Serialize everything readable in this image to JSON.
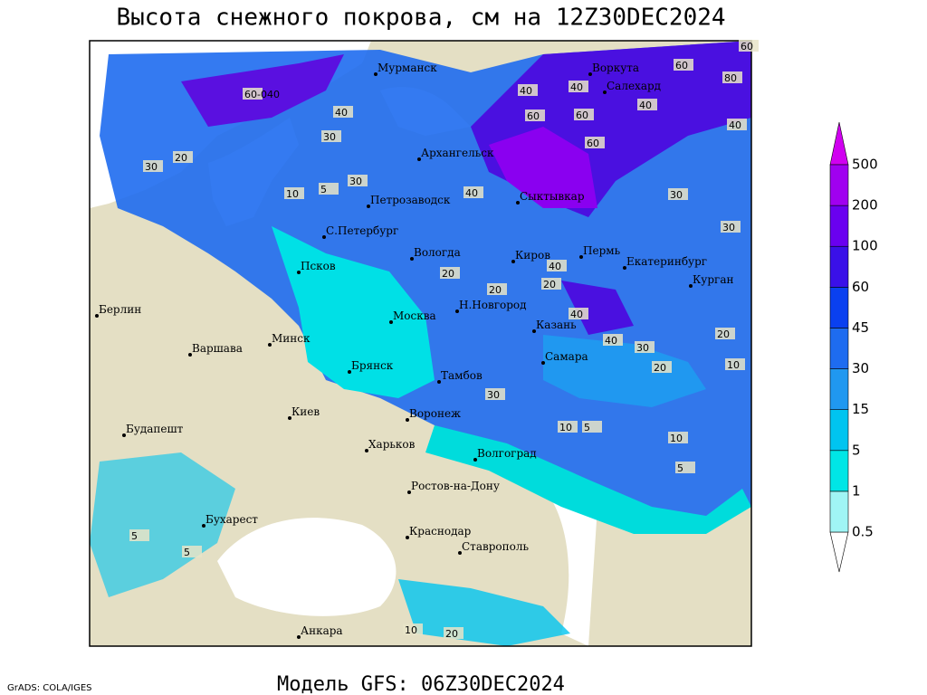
{
  "header": {
    "title": "Высота снежного покрова, см на 12Z30DEC2024"
  },
  "footer": {
    "credit": "GrADS: COLA/IGES",
    "model": "Модель GFS: 06Z30DEC2024"
  },
  "legend": {
    "levels": [
      0.5,
      1,
      5,
      15,
      30,
      45,
      60,
      100,
      200,
      500
    ],
    "colors": [
      "#ffffff",
      "#a0f5f5",
      "#00e6e6",
      "#00c4f0",
      "#2098f0",
      "#1e6cf0",
      "#0a40f0",
      "#3a10e8",
      "#6a00f0",
      "#a000f0",
      "#d000f0"
    ]
  },
  "cities": [
    "Мурманск",
    "Архангельск",
    "Воркута",
    "Салехард",
    "Петрозаводск",
    "С.Петербург",
    "Сыктывкар",
    "Вологда",
    "Псков",
    "Киров",
    "Пермь",
    "Екатеринбург",
    "Курган",
    "Берлин",
    "Н.Новгород",
    "Казань",
    "Москва",
    "Минск",
    "Варшава",
    "Самара",
    "Брянск",
    "Тамбов",
    "Воронеж",
    "Киев",
    "Будапешт",
    "Харьков",
    "Волгоград",
    "Ростов-на-Дону",
    "Бухарест",
    "Краснодар",
    "Ставрополь",
    "Анкара"
  ],
  "contour_labels": [
    "60-040",
    "40",
    "30",
    "20",
    "30",
    "10",
    "5",
    "30",
    "40",
    "40",
    "60",
    "60",
    "80",
    "60",
    "40",
    "40",
    "60",
    "40",
    "30",
    "30",
    "20",
    "20",
    "40",
    "20",
    "40",
    "30",
    "40",
    "20",
    "10",
    "20",
    "30",
    "10",
    "5",
    "10",
    "5",
    "5",
    "5",
    "10",
    "20",
    "60"
  ]
}
